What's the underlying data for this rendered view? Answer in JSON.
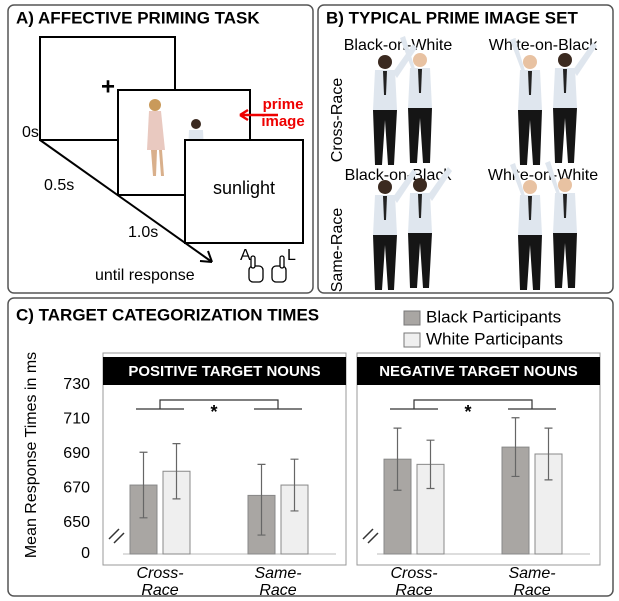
{
  "panels": {
    "a": {
      "title": "A) AFFECTIVE PRIMING TASK",
      "fixation": "+",
      "prime_label": "prime image",
      "target_word": "sunlight",
      "times": [
        "0s",
        "0.5s",
        "1.0s",
        "until response"
      ],
      "keys": [
        "A",
        "L"
      ]
    },
    "b": {
      "title": "B) TYPICAL PRIME IMAGE SET",
      "rows": [
        "Cross-Race",
        "Same-Race"
      ],
      "cells": [
        [
          "Black-on-White",
          "White-on-Black"
        ],
        [
          "Black-on-Black",
          "White-on-White"
        ]
      ]
    },
    "c": {
      "title": "C) TARGET CATEGORIZATION TIMES",
      "y_label": "Mean Response Times in ms"
    }
  },
  "chart_data": [
    {
      "type": "bar",
      "title": "POSITIVE TARGET NOUNS",
      "categories": [
        "Cross-Race",
        "Same-Race"
      ],
      "series": [
        {
          "name": "Black Participants",
          "color": "#a9a6a3",
          "values": [
            672,
            666
          ],
          "errors": [
            19,
            18
          ]
        },
        {
          "name": "White Participants",
          "color": "#efefef",
          "values": [
            680,
            672
          ],
          "errors": [
            16,
            15
          ]
        }
      ],
      "ylim": [
        0,
        730
      ],
      "yticks": [
        0,
        650,
        670,
        690,
        710,
        730
      ],
      "axis_break": [
        0,
        650
      ],
      "significance": "*"
    },
    {
      "type": "bar",
      "title": "NEGATIVE TARGET NOUNS",
      "categories": [
        "Cross-Race",
        "Same-Race"
      ],
      "series": [
        {
          "color": "#a9a6a3",
          "values": [
            687,
            694
          ],
          "errors": [
            18,
            17
          ]
        },
        {
          "color": "#efefef",
          "values": [
            684,
            690
          ],
          "errors": [
            14,
            15
          ]
        }
      ],
      "significance": "*"
    }
  ]
}
